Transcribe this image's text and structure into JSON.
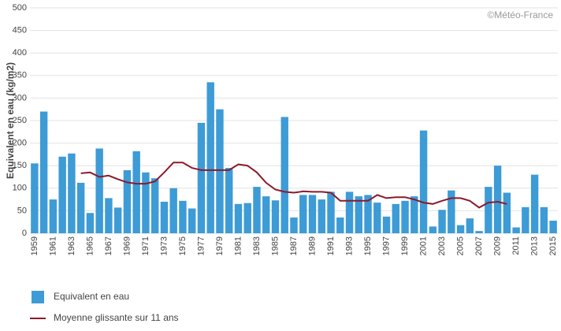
{
  "chart_data": {
    "type": "bar",
    "y_label": "Equivalent en eau (kg/m2)",
    "source": "©Météo-France",
    "categories": [
      "1959",
      null,
      "1961",
      null,
      "1963",
      null,
      "1965",
      null,
      "1967",
      null,
      "1969",
      null,
      "1971",
      null,
      "1973",
      null,
      "1975",
      null,
      "1977",
      null,
      "1979",
      null,
      "1981",
      null,
      "1983",
      null,
      "1985",
      null,
      "1987",
      null,
      "1989",
      null,
      "1991",
      null,
      "1993",
      null,
      "1995",
      null,
      "1997",
      null,
      "1999",
      null,
      "2001",
      null,
      "2003",
      null,
      "2005",
      null,
      "2007",
      null,
      "2009",
      null,
      "2011",
      null,
      "2013",
      null,
      "2015"
    ],
    "series": [
      {
        "name": "Equivalent en eau",
        "type": "bar",
        "color": "#3d9bd6",
        "values": [
          155,
          270,
          75,
          170,
          177,
          112,
          45,
          188,
          78,
          57,
          140,
          182,
          135,
          122,
          70,
          100,
          72,
          55,
          245,
          335,
          275,
          145,
          65,
          67,
          103,
          82,
          73,
          258,
          35,
          85,
          85,
          75,
          92,
          35,
          92,
          82,
          85,
          68,
          37,
          65,
          72,
          82,
          228,
          15,
          52,
          95,
          18,
          33,
          5,
          103,
          150,
          90,
          13,
          58,
          130,
          58,
          28
        ]
      },
      {
        "name": "Moyenne glissante sur 11 ans",
        "type": "line",
        "color": "#8b1a2a",
        "values": [
          null,
          null,
          null,
          null,
          null,
          133,
          135,
          125,
          128,
          120,
          113,
          110,
          110,
          115,
          135,
          157,
          157,
          145,
          140,
          140,
          140,
          140,
          153,
          150,
          135,
          112,
          97,
          92,
          90,
          93,
          92,
          92,
          90,
          72,
          72,
          72,
          72,
          85,
          78,
          80,
          80,
          75,
          68,
          65,
          72,
          78,
          78,
          72,
          57,
          68,
          70,
          65,
          null,
          null,
          null,
          null,
          null
        ]
      }
    ],
    "ylim": [
      0,
      500
    ],
    "yticks": [
      0,
      50,
      100,
      150,
      200,
      250,
      300,
      350,
      400,
      450,
      500
    ],
    "grid": true,
    "legend": "bottom-left"
  }
}
